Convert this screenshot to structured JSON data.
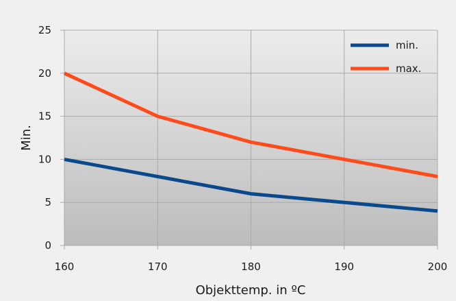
{
  "chart_data": {
    "type": "line",
    "x": [
      160,
      170,
      180,
      190,
      200
    ],
    "series": [
      {
        "name": "min.",
        "values": [
          10,
          8,
          6,
          5,
          4
        ],
        "color": "#0a4a8c"
      },
      {
        "name": "max.",
        "values": [
          20,
          15,
          12,
          10,
          8
        ],
        "color": "#ff4a1a"
      }
    ],
    "xlabel": "Objekttemp. in ºC",
    "ylabel": "Min.",
    "xlim": [
      160,
      200
    ],
    "ylim": [
      0,
      25
    ],
    "yticks": [
      0,
      5,
      10,
      15,
      20,
      25
    ],
    "xticks": [
      160,
      170,
      180,
      190,
      200
    ],
    "grid": true,
    "legend_position": "top-right",
    "colors": {
      "background": "#f0f0f0",
      "plot_gradient_top": "#ececec",
      "plot_gradient_bottom": "#bcbcbc",
      "gridline": "#aaaaaa"
    }
  }
}
